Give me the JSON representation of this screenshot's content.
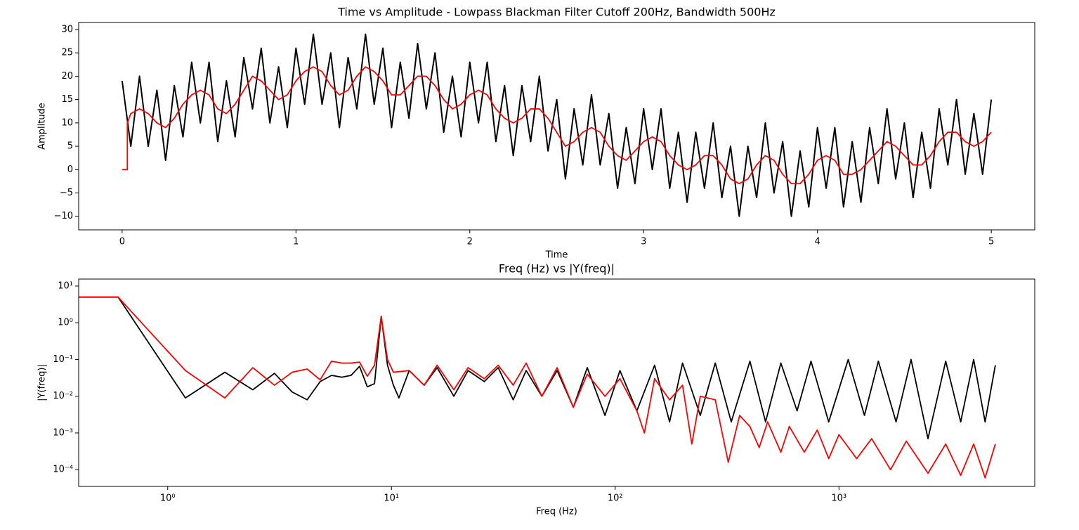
{
  "chart_data": [
    {
      "type": "line",
      "title": "Time vs Amplitude - Lowpass Blackman Filter Cutoff 200Hz, Bandwidth 500Hz",
      "xlabel": "Time",
      "ylabel": "Amplitude",
      "xlim": [
        -0.25,
        5.25
      ],
      "ylim": [
        -12.9,
        31.5
      ],
      "xticks": [
        0,
        1,
        2,
        3,
        4,
        5
      ],
      "yticks": [
        {
          "value": -10,
          "label": "−10"
        },
        {
          "value": -5,
          "label": "−5"
        },
        0,
        5,
        10,
        15,
        20,
        25,
        30
      ],
      "series": [
        {
          "color": "#000000",
          "x": [
            0,
            0.05,
            0.1,
            0.15,
            0.2,
            0.25,
            0.3,
            0.35,
            0.4,
            0.45,
            0.5,
            0.55,
            0.6,
            0.65,
            0.7,
            0.75,
            0.8,
            0.85,
            0.9,
            0.95,
            1.0,
            1.05,
            1.1,
            1.15,
            1.2,
            1.25,
            1.3,
            1.35,
            1.4,
            1.45,
            1.5,
            1.55,
            1.6,
            1.65,
            1.7,
            1.75,
            1.8,
            1.85,
            1.9,
            1.95,
            2.0,
            2.05,
            2.1,
            2.15,
            2.2,
            2.25,
            2.3,
            2.35,
            2.4,
            2.45,
            2.5,
            2.55,
            2.6,
            2.65,
            2.7,
            2.75,
            2.8,
            2.85,
            2.9,
            2.95,
            3.0,
            3.05,
            3.1,
            3.15,
            3.2,
            3.25,
            3.3,
            3.35,
            3.4,
            3.45,
            3.5,
            3.55,
            3.6,
            3.65,
            3.7,
            3.75,
            3.8,
            3.85,
            3.9,
            3.95,
            4.0,
            4.05,
            4.1,
            4.15,
            4.2,
            4.25,
            4.3,
            4.35,
            4.4,
            4.45,
            4.5,
            4.55,
            4.6,
            4.65,
            4.7,
            4.75,
            4.8,
            4.85,
            4.9,
            4.95,
            5.0
          ],
          "values": [
            19,
            5,
            20,
            5,
            17,
            2,
            18,
            7,
            23,
            10,
            23,
            6,
            19,
            7,
            24,
            13,
            26,
            10,
            22,
            9,
            26,
            14,
            29,
            14,
            25,
            9,
            24,
            13,
            29,
            14,
            26,
            9,
            23,
            11,
            27,
            13,
            25,
            8,
            20,
            7,
            23,
            10,
            23,
            6,
            18,
            3,
            18,
            6,
            20,
            4,
            15,
            -2,
            13,
            1,
            16,
            1,
            12,
            -4,
            9,
            -3,
            13,
            0,
            13,
            -4,
            8,
            -7,
            8,
            -4,
            10,
            -6,
            5,
            -10,
            5,
            -6,
            10,
            -5,
            6,
            -10,
            4,
            -8,
            9,
            -4,
            9,
            -8,
            6,
            -7,
            9,
            -3,
            13,
            -2,
            10,
            -6,
            8,
            -4,
            13,
            1,
            15,
            -1,
            12,
            -1,
            15
          ]
        },
        {
          "color": "#ff0000",
          "x": [
            0,
            0.03,
            0.03,
            0.05,
            0.1,
            0.15,
            0.2,
            0.25,
            0.3,
            0.35,
            0.4,
            0.45,
            0.5,
            0.55,
            0.6,
            0.65,
            0.7,
            0.75,
            0.8,
            0.85,
            0.9,
            0.95,
            1.0,
            1.05,
            1.1,
            1.15,
            1.2,
            1.25,
            1.3,
            1.35,
            1.4,
            1.45,
            1.5,
            1.55,
            1.6,
            1.65,
            1.7,
            1.75,
            1.8,
            1.85,
            1.9,
            1.95,
            2.0,
            2.05,
            2.1,
            2.15,
            2.2,
            2.25,
            2.3,
            2.35,
            2.4,
            2.45,
            2.5,
            2.55,
            2.6,
            2.65,
            2.7,
            2.75,
            2.8,
            2.85,
            2.9,
            2.95,
            3.0,
            3.05,
            3.1,
            3.15,
            3.2,
            3.25,
            3.3,
            3.35,
            3.4,
            3.45,
            3.5,
            3.55,
            3.6,
            3.65,
            3.7,
            3.75,
            3.8,
            3.85,
            3.9,
            3.95,
            4.0,
            4.05,
            4.1,
            4.15,
            4.2,
            4.25,
            4.3,
            4.35,
            4.4,
            4.45,
            4.5,
            4.55,
            4.6,
            4.65,
            4.7,
            4.75,
            4.8,
            4.85,
            4.9,
            4.95,
            5.0
          ],
          "values": [
            0,
            0,
            10,
            12,
            13,
            12,
            10,
            9,
            11,
            14,
            16,
            17,
            16,
            13,
            12,
            14,
            17,
            20,
            19,
            17,
            15,
            16,
            19,
            21,
            22,
            21,
            18,
            16,
            17,
            20,
            22,
            21,
            19,
            16,
            16,
            18,
            20,
            20,
            18,
            15,
            13,
            14,
            16,
            17,
            16,
            13,
            11,
            10,
            11,
            13,
            13,
            11,
            8,
            5,
            6,
            8,
            9,
            8,
            5,
            3,
            2,
            4,
            6,
            7,
            6,
            3,
            1,
            0,
            1,
            3,
            3,
            1,
            -2,
            -3,
            -2,
            1,
            3,
            2,
            -1,
            -3,
            -3,
            -1,
            2,
            3,
            2,
            -1,
            -1,
            0,
            2,
            4,
            6,
            5,
            3,
            1,
            1,
            3,
            6,
            8,
            8,
            6,
            5,
            6,
            8
          ]
        }
      ]
    },
    {
      "type": "line",
      "title": "Freq (Hz) vs |Y(freq)|",
      "xlabel": "Freq (Hz)",
      "ylabel": "|Y(freq)|",
      "xscale": "log",
      "yscale": "log",
      "xlim": [
        0.4,
        7500
      ],
      "ylim": [
        3.5e-05,
        15.5
      ],
      "xticks": [
        {
          "value": 1,
          "label": "10⁰"
        },
        {
          "value": 10,
          "label": "10¹"
        },
        {
          "value": 100,
          "label": "10²"
        },
        {
          "value": 1000,
          "label": "10³"
        }
      ],
      "yticks": [
        {
          "value": 0.0001,
          "label": "10⁻⁴"
        },
        {
          "value": 0.001,
          "label": "10⁻³"
        },
        {
          "value": 0.01,
          "label": "10⁻²"
        },
        {
          "value": 0.1,
          "label": "10⁻¹"
        },
        {
          "value": 1,
          "label": "10⁰"
        },
        {
          "value": 10,
          "label": "10¹"
        }
      ],
      "series": [
        {
          "color": "#000000",
          "x": [
            0.4,
            0.6,
            1.2,
            1.8,
            2.4,
            3.0,
            3.6,
            4.2,
            4.8,
            5.4,
            6.0,
            6.6,
            7.2,
            7.8,
            8.4,
            9.0,
            9.6,
            10.2,
            10.8,
            12,
            14,
            16,
            19,
            22,
            26,
            30,
            35,
            40,
            47,
            55,
            65,
            75,
            90,
            105,
            125,
            150,
            175,
            200,
            240,
            280,
            330,
            400,
            470,
            550,
            650,
            750,
            900,
            1100,
            1300,
            1500,
            1800,
            2100,
            2500,
            3000,
            3500,
            4000,
            4500,
            5000
          ],
          "values": [
            5,
            5,
            0.009,
            0.045,
            0.015,
            0.042,
            0.013,
            0.008,
            0.025,
            0.037,
            0.033,
            0.037,
            0.065,
            0.018,
            0.022,
            1.5,
            0.07,
            0.02,
            0.009,
            0.05,
            0.02,
            0.06,
            0.01,
            0.05,
            0.025,
            0.06,
            0.008,
            0.05,
            0.01,
            0.05,
            0.005,
            0.06,
            0.003,
            0.05,
            0.004,
            0.07,
            0.002,
            0.08,
            0.003,
            0.08,
            0.002,
            0.09,
            0.002,
            0.08,
            0.004,
            0.09,
            0.002,
            0.1,
            0.003,
            0.09,
            0.002,
            0.1,
            0.0007,
            0.09,
            0.002,
            0.1,
            0.002,
            0.07
          ]
        },
        {
          "color": "#ff0000",
          "x": [
            0.4,
            0.6,
            1.2,
            1.8,
            2.4,
            3.0,
            3.6,
            4.2,
            4.8,
            5.4,
            6.0,
            6.6,
            7.2,
            7.8,
            8.4,
            9.0,
            9.6,
            10.2,
            12,
            14,
            16,
            19,
            22,
            26,
            30,
            35,
            40,
            47,
            55,
            65,
            75,
            90,
            105,
            125,
            135,
            150,
            175,
            200,
            220,
            240,
            280,
            320,
            360,
            400,
            440,
            480,
            550,
            600,
            700,
            800,
            900,
            1000,
            1200,
            1400,
            1700,
            2000,
            2500,
            3000,
            3500,
            4000,
            4500,
            5000
          ],
          "values": [
            5,
            5,
            0.05,
            0.009,
            0.06,
            0.02,
            0.045,
            0.055,
            0.028,
            0.09,
            0.08,
            0.08,
            0.085,
            0.035,
            0.07,
            1.5,
            0.1,
            0.045,
            0.05,
            0.02,
            0.07,
            0.015,
            0.06,
            0.03,
            0.07,
            0.02,
            0.08,
            0.01,
            0.06,
            0.005,
            0.04,
            0.01,
            0.03,
            0.004,
            0.001,
            0.03,
            0.008,
            0.02,
            0.0005,
            0.01,
            0.008,
            0.00016,
            0.003,
            0.0015,
            0.0004,
            0.002,
            0.0003,
            0.0015,
            0.0003,
            0.0012,
            0.0002,
            0.0009,
            0.0002,
            0.0007,
            0.0001,
            0.0006,
            8e-05,
            0.0005,
            7e-05,
            0.0005,
            6e-05,
            0.0005
          ]
        }
      ]
    }
  ]
}
